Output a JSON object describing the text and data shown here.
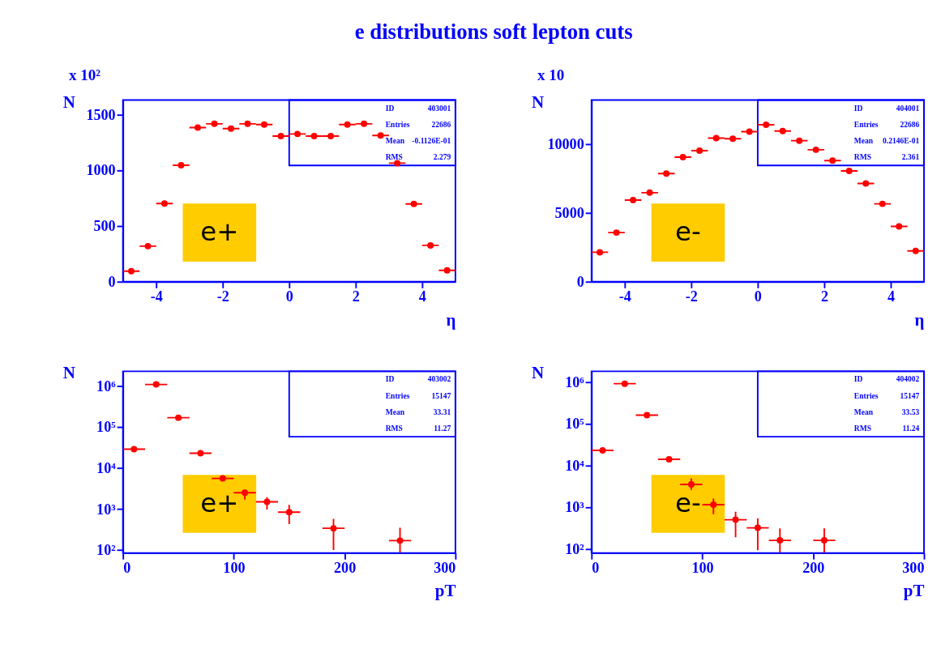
{
  "chart_data": [
    {
      "type": "scatter",
      "title": "e distributions soft lepton cuts",
      "xlabel": "η",
      "ylabel": "N",
      "marker": "circle",
      "x": [
        -4.75,
        -4.25,
        -3.75,
        -3.25,
        -2.75,
        -2.25,
        -1.75,
        -1.25,
        -0.75,
        -0.25,
        0.25,
        0.75,
        1.25,
        1.75,
        2.25,
        2.75,
        3.25,
        3.75,
        4.25,
        4.75
      ],
      "xlim": [
        -5,
        5
      ],
      "xticks": [
        -4,
        -2,
        0,
        2,
        4
      ],
      "ylim": [
        0,
        1630
      ],
      "yticks": [
        0,
        500,
        1000,
        1500
      ],
      "series": [
        {
          "color": "#ff0000",
          "values": [
            95,
            319,
            702,
            1045,
            1383,
            1417,
            1374,
            1417,
            1410,
            1307,
            1326,
            1307,
            1307,
            1410,
            1417,
            1312,
            1064,
            698,
            326,
            102
          ],
          "xerrors": [
            0.25,
            0.25,
            0.25,
            0.25,
            0.25,
            0.25,
            0.25,
            0.25,
            0.25,
            0.25,
            0.25,
            0.25,
            0.25,
            0.25,
            0.25,
            0.25,
            0.25,
            0.25,
            0.25,
            0.25
          ]
        }
      ],
      "annotations": [
        "ID",
        "403001",
        "Entries",
        "22686",
        "Mean",
        "-0.1126E-01",
        "RMS",
        "2.279",
        "e+",
        "x 10²"
      ]
    },
    {
      "type": "scatter",
      "xlabel": "η",
      "ylabel": "N",
      "marker": "circle",
      "x": [
        -4.75,
        -4.25,
        -3.75,
        -3.25,
        -2.75,
        -2.25,
        -1.75,
        -1.25,
        -0.75,
        -0.25,
        0.25,
        0.75,
        1.25,
        1.75,
        2.25,
        2.75,
        3.25,
        3.75,
        4.25,
        4.75
      ],
      "xlim": [
        -5,
        5
      ],
      "xticks": [
        -4,
        -2,
        0,
        2,
        4
      ],
      "ylim": [
        0,
        13200
      ],
      "yticks": [
        0,
        5000,
        10000
      ],
      "series": [
        {
          "color": "#ff0000",
          "values": [
            2140,
            3570,
            5930,
            6470,
            7860,
            9050,
            9520,
            10440,
            10390,
            10910,
            11410,
            10950,
            10250,
            9590,
            8800,
            8050,
            7140,
            5660,
            4020,
            2240
          ],
          "xerrors": [
            0.25,
            0.25,
            0.25,
            0.25,
            0.25,
            0.25,
            0.25,
            0.25,
            0.25,
            0.25,
            0.25,
            0.25,
            0.25,
            0.25,
            0.25,
            0.25,
            0.25,
            0.25,
            0.25,
            0.25
          ]
        }
      ],
      "annotations": [
        "ID",
        "404001",
        "Entries",
        "22686",
        "Mean",
        "0.2146E-01",
        "RMS",
        "2.361",
        "e-",
        "x 10"
      ]
    },
    {
      "type": "scatter",
      "xlabel": "pT",
      "ylabel": "N",
      "marker": "circle",
      "log": "y",
      "x": [
        10,
        30,
        50,
        70,
        90,
        110,
        130,
        150,
        190,
        250
      ],
      "xlim": [
        0,
        300
      ],
      "xticks": [
        0,
        100,
        200,
        300
      ],
      "ylim": [
        85,
        2300000
      ],
      "yticks": [
        {
          "value": 100,
          "label": "10²"
        },
        {
          "value": 1000,
          "label": "10³"
        },
        {
          "value": 10000,
          "label": "10⁴"
        },
        {
          "value": 100000,
          "label": "10⁵"
        },
        {
          "value": 1000000,
          "label": "10⁶"
        }
      ],
      "series": [
        {
          "color": "#ff0000",
          "values": [
            29000,
            1100000,
            170000,
            23000,
            5600,
            2500,
            1500,
            840,
            340,
            170
          ],
          "errors": [
            null,
            null,
            null,
            null,
            null,
            [
              1700,
              3000
            ],
            [
              970,
              1950
            ],
            [
              430,
              1260
            ],
            [
              100,
              580
            ],
            [
              86,
              350
            ]
          ],
          "xerrors": [
            10,
            10,
            10,
            10,
            10,
            10,
            10,
            10,
            10,
            10
          ]
        }
      ],
      "annotations": [
        "ID",
        "403002",
        "Entries",
        "15147",
        "Mean",
        "33.31",
        "RMS",
        "11.27",
        "e+"
      ]
    },
    {
      "type": "scatter",
      "xlabel": "pT",
      "ylabel": "N",
      "marker": "circle",
      "log": "y",
      "x": [
        10,
        30,
        50,
        70,
        90,
        110,
        130,
        150,
        170,
        210
      ],
      "xlim": [
        0,
        300
      ],
      "xticks": [
        0,
        100,
        200,
        300
      ],
      "ylim": [
        80,
        1800000
      ],
      "yticks": [
        {
          "value": 100,
          "label": "10²"
        },
        {
          "value": 1000,
          "label": "10³"
        },
        {
          "value": 10000,
          "label": "10⁴"
        },
        {
          "value": 100000,
          "label": "10⁵"
        },
        {
          "value": 1000000,
          "label": "10⁶"
        }
      ],
      "series": [
        {
          "color": "#ff0000",
          "values": [
            23000,
            910000,
            160000,
            14000,
            3500,
            1150,
            500,
            320,
            160,
            160
          ],
          "errors": [
            null,
            null,
            null,
            null,
            [
              2600,
              4900
            ],
            [
              680,
              1600
            ],
            [
              190,
              780
            ],
            [
              93,
              540
            ],
            [
              80,
              310
            ],
            [
              80,
              310
            ]
          ],
          "xerrors": [
            10,
            10,
            10,
            10,
            10,
            10,
            10,
            10,
            10,
            10
          ]
        }
      ],
      "annotations": [
        "ID",
        "404002",
        "Entries",
        "15147",
        "Mean",
        "33.53",
        "RMS",
        "11.24",
        "e-"
      ]
    }
  ]
}
